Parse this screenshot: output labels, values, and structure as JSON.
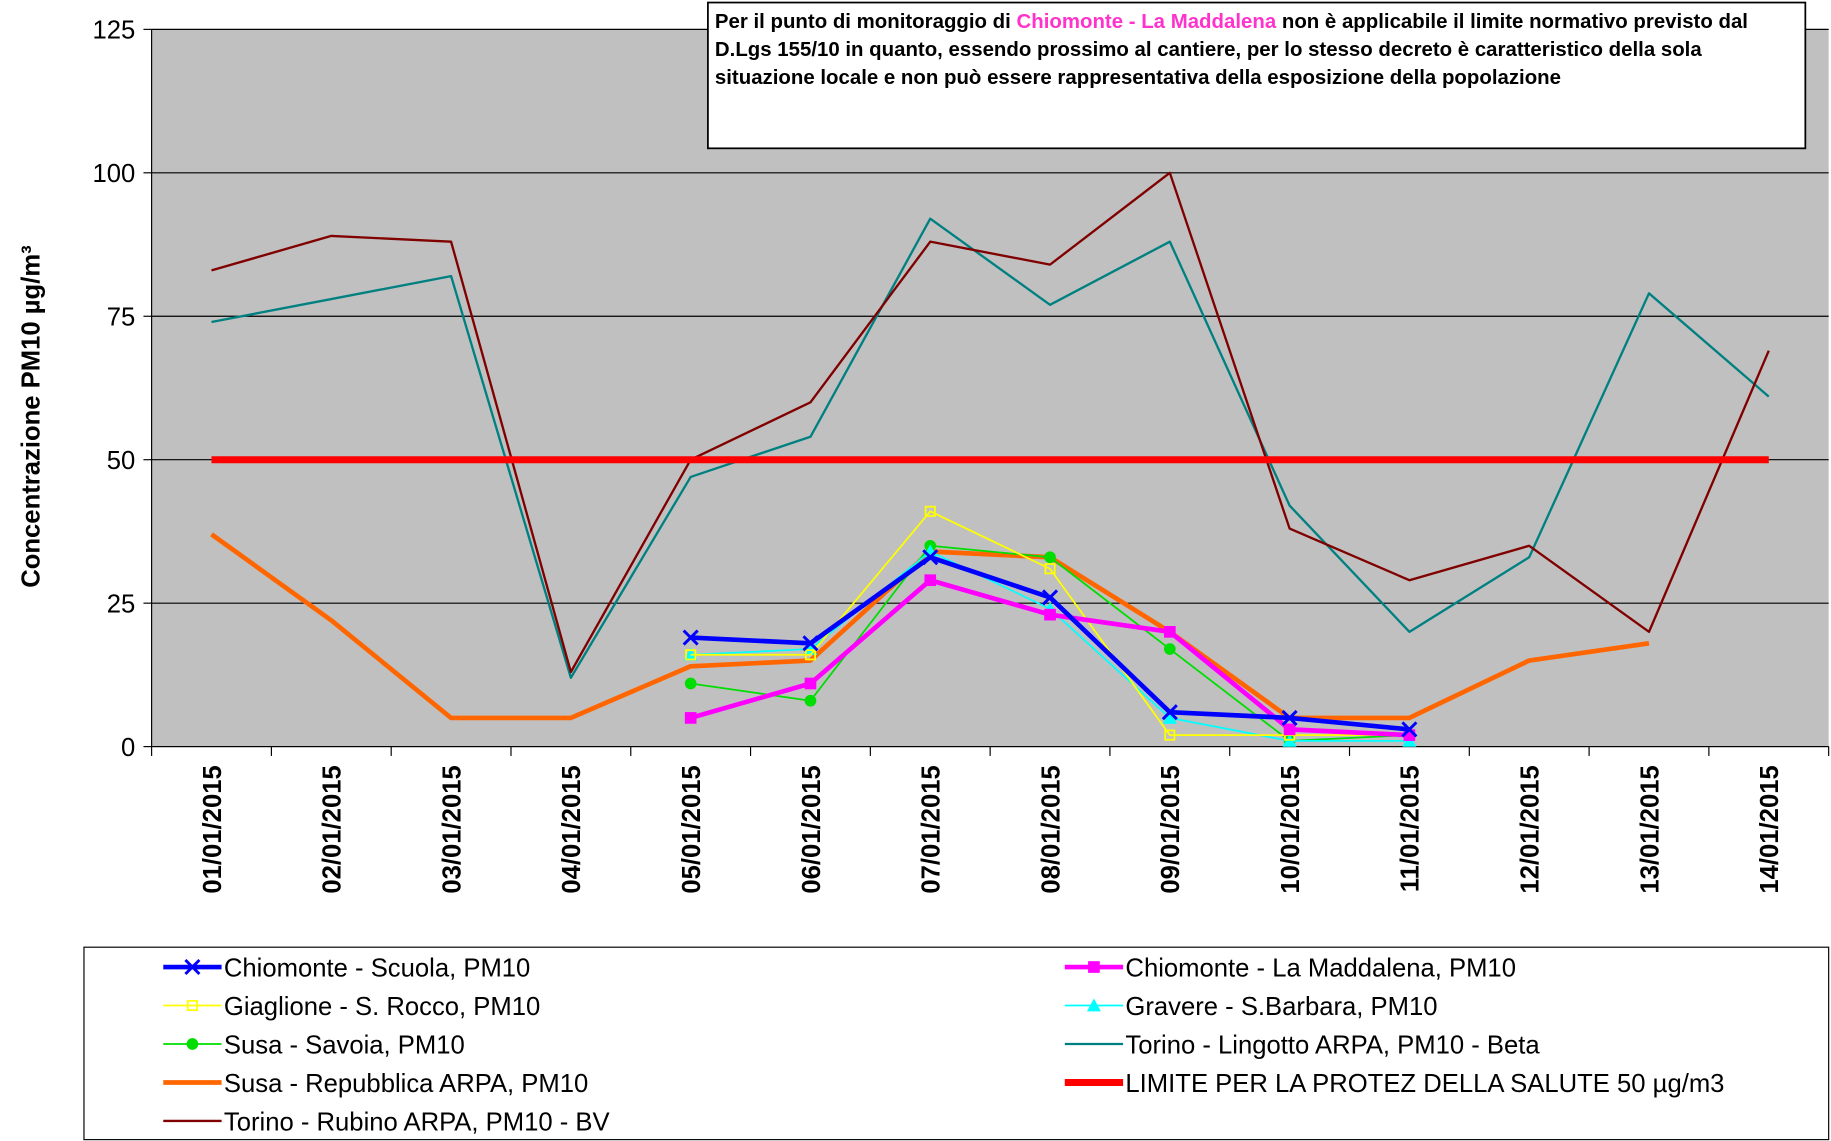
{
  "chart_data": {
    "type": "line",
    "y_label": "Concentrazione PM10 µg/m³",
    "annotation": [
      "Per il punto di monitoraggio di ",
      "Chiomonte - La Maddalena",
      " non è applicabile il limite normativo previsto dal D.Lgs 155/10 in quanto, essendo prossimo al cantiere, per lo stesso decreto è caratteristico della sola situazione locale e non può essere rappresentativa della esposizione della popolazione"
    ],
    "categories": [
      "01/01/2015",
      "02/01/2015",
      "03/01/2015",
      "04/01/2015",
      "05/01/2015",
      "06/01/2015",
      "07/01/2015",
      "08/01/2015",
      "09/01/2015",
      "10/01/2015",
      "11/01/2015",
      "12/01/2015",
      "13/01/2015",
      "14/01/2015"
    ],
    "ylim": [
      0,
      125
    ],
    "yticks": [
      0,
      25,
      50,
      75,
      100,
      125
    ],
    "grid": true,
    "series": [
      {
        "name": "Chiomonte - Scuola, PM10",
        "color": "#0000ff",
        "marker": "x",
        "width": 4,
        "values": [
          null,
          null,
          null,
          null,
          19,
          18,
          33,
          26,
          6,
          5,
          3,
          null,
          null,
          null
        ]
      },
      {
        "name": "Chiomonte - La Maddalena, PM10",
        "color": "#ff00ff",
        "marker": "square",
        "width": 4,
        "values": [
          null,
          null,
          null,
          null,
          5,
          11,
          29,
          23,
          20,
          3,
          2,
          null,
          null,
          null
        ]
      },
      {
        "name": "Giaglione - S. Rocco, PM10",
        "color": "#ffff00",
        "marker": "hollow-square",
        "width": 1.5,
        "values": [
          null,
          null,
          null,
          null,
          16,
          16,
          41,
          31,
          2,
          2,
          2,
          null,
          null,
          null
        ]
      },
      {
        "name": "Gravere - S.Barbara, PM10",
        "color": "#00ffff",
        "marker": "triangle",
        "width": 1.5,
        "values": [
          null,
          null,
          null,
          null,
          16,
          17,
          34,
          24,
          5,
          1,
          1,
          null,
          null,
          null
        ]
      },
      {
        "name": "Susa - Savoia, PM10",
        "color": "#00dd00",
        "marker": "circle",
        "width": 1.5,
        "values": [
          null,
          null,
          null,
          null,
          11,
          8,
          35,
          33,
          17,
          1,
          2,
          null,
          null,
          null
        ]
      },
      {
        "name": "Torino - Lingotto ARPA, PM10 - Beta",
        "color": "#008080",
        "marker": "none",
        "width": 2,
        "values": [
          74,
          78,
          82,
          12,
          47,
          54,
          92,
          77,
          88,
          42,
          20,
          33,
          79,
          61
        ]
      },
      {
        "name": "Susa - Repubblica ARPA, PM10",
        "color": "#ff6600",
        "marker": "none",
        "width": 4,
        "values": [
          37,
          22,
          5,
          5,
          14,
          15,
          34,
          33,
          20,
          5,
          5,
          15,
          18,
          null
        ]
      },
      {
        "name": "LIMITE PER LA PROTEZ DELLA SALUTE 50 µg/m3",
        "color": "#ff0000",
        "marker": "none",
        "width": 6,
        "values": [
          50,
          50,
          50,
          50,
          50,
          50,
          50,
          50,
          50,
          50,
          50,
          50,
          50,
          50
        ]
      },
      {
        "name": "Torino - Rubino ARPA, PM10 - BV",
        "color": "#800000",
        "marker": "none",
        "width": 2,
        "values": [
          83,
          89,
          88,
          13,
          50,
          60,
          88,
          84,
          100,
          38,
          29,
          35,
          20,
          69
        ]
      }
    ]
  }
}
